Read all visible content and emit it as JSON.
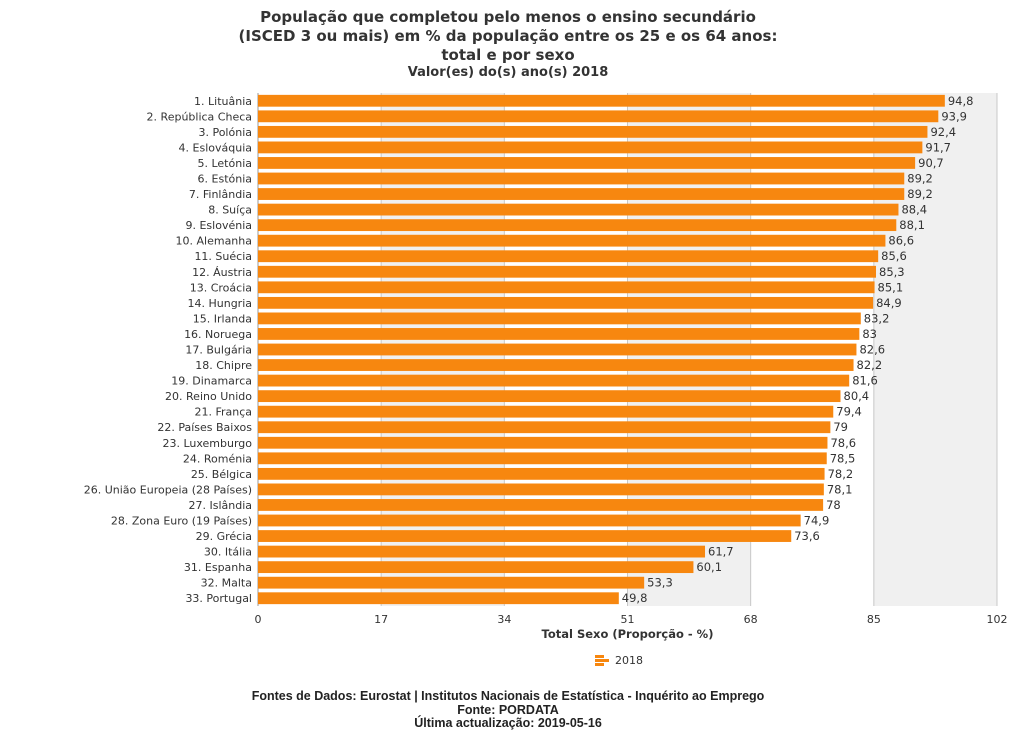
{
  "title_lines": [
    "População que completou pelo menos o ensino secundário",
    "(ISCED 3 ou mais) em % da população entre os 25 e os 64 anos:",
    "total e por sexo"
  ],
  "subtitle": "Valor(es) do(s) ano(s) 2018",
  "footer": {
    "sources": "Fontes de Dados: Eurostat | Institutos Nacionais de Estatística - Inquérito ao Emprego",
    "source": "Fonte: PORDATA",
    "updated": "Última actualização: 2019-05-16"
  },
  "colors": {
    "bar": "#f7870f",
    "plot_bg": "#f0f0f0",
    "grid": "#c8c8c8"
  },
  "chart_data": {
    "type": "bar",
    "orientation": "horizontal",
    "xlabel": "Total Sexo (Proporção - %)",
    "xlim": [
      0,
      102
    ],
    "xticks": [
      0,
      17,
      34,
      51,
      68,
      85,
      102
    ],
    "grid": true,
    "legend": {
      "position": "bottom",
      "entries": [
        "2018"
      ]
    },
    "categories": [
      "1. Lituânia",
      "2. República Checa",
      "3. Polónia",
      "4. Eslováquia",
      "5. Letónia",
      "6. Estónia",
      "7. Finlândia",
      "8. Suíça",
      "9. Eslovénia",
      "10. Alemanha",
      "11. Suécia",
      "12. Áustria",
      "13. Croácia",
      "14. Hungria",
      "15. Irlanda",
      "16. Noruega",
      "17. Bulgária",
      "18. Chipre",
      "19. Dinamarca",
      "20. Reino Unido",
      "21. França",
      "22. Países Baixos",
      "23. Luxemburgo",
      "24. Roménia",
      "25. Bélgica",
      "26. União Europeia (28 Países)",
      "27. Islândia",
      "28. Zona Euro (19 Países)",
      "29. Grécia",
      "30. Itália",
      "31. Espanha",
      "32. Malta",
      "33. Portugal"
    ],
    "series": [
      {
        "name": "2018",
        "values": [
          94.8,
          93.9,
          92.4,
          91.7,
          90.7,
          89.2,
          89.2,
          88.4,
          88.1,
          86.6,
          85.6,
          85.3,
          85.1,
          84.9,
          83.2,
          83,
          82.6,
          82.2,
          81.6,
          80.4,
          79.4,
          79,
          78.6,
          78.5,
          78.2,
          78.1,
          78,
          74.9,
          73.6,
          61.7,
          60.1,
          53.3,
          49.8
        ],
        "labels": [
          "94,8",
          "93,9",
          "92,4",
          "91,7",
          "90,7",
          "89,2",
          "89,2",
          "88,4",
          "88,1",
          "86,6",
          "85,6",
          "85,3",
          "85,1",
          "84,9",
          "83,2",
          "83",
          "82,6",
          "82,2",
          "81,6",
          "80,4",
          "79,4",
          "79",
          "78,6",
          "78,5",
          "78,2",
          "78,1",
          "78",
          "74,9",
          "73,6",
          "61,7",
          "60,1",
          "53,3",
          "49,8"
        ]
      }
    ]
  }
}
